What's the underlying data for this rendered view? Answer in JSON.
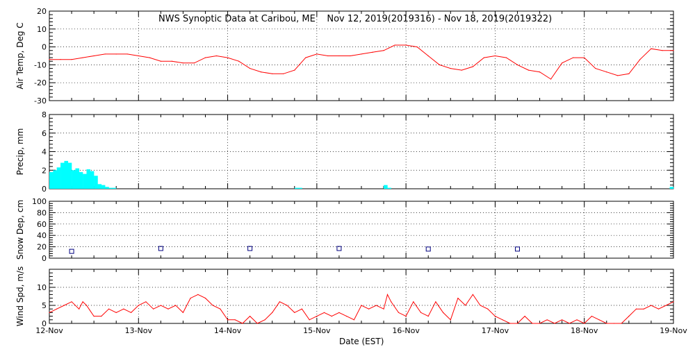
{
  "title": "NWS Synoptic Data at Caribou, ME    Nov 12, 2019(2019316) - Nov 18, 2019(2019322)",
  "xlabel": "Date (EST)",
  "colors": {
    "temp": "#ff0000",
    "precip": "#00ffff",
    "snow": "#000080",
    "wind": "#ff0000",
    "grid": "#000000",
    "axis": "#000000"
  },
  "chart_data": [
    {
      "id": "air-temp",
      "type": "line",
      "title": "",
      "xlabel": "",
      "ylabel": "Air Temp, Deg C",
      "xlim": [
        0,
        7
      ],
      "ylim": [
        -30,
        20
      ],
      "yticks": [
        -30,
        -20,
        -10,
        0,
        10,
        20
      ],
      "grid": true,
      "series": [
        {
          "x": [
            0,
            0.125,
            0.25,
            0.375,
            0.5,
            0.625,
            0.75,
            0.875,
            1.0,
            1.125,
            1.25,
            1.375,
            1.5,
            1.625,
            1.75,
            1.875,
            2.0,
            2.125,
            2.25,
            2.375,
            2.5,
            2.625,
            2.75,
            2.875,
            3.0,
            3.125,
            3.25,
            3.375,
            3.5,
            3.625,
            3.75,
            3.875,
            4.0,
            4.125,
            4.25,
            4.375,
            4.5,
            4.625,
            4.75,
            4.875,
            5.0,
            5.125,
            5.25,
            5.375,
            5.5,
            5.625,
            5.75,
            5.875,
            6.0,
            6.125,
            6.25,
            6.375,
            6.5,
            6.625,
            6.75,
            6.875,
            7.0
          ],
          "values": [
            -7,
            -7,
            -7,
            -6,
            -5,
            -4,
            -4,
            -4,
            -5,
            -6,
            -8,
            -8,
            -9,
            -9,
            -6,
            -5,
            -6,
            -8,
            -12,
            -14,
            -15,
            -15,
            -13,
            -6,
            -4,
            -5,
            -5,
            -5,
            -4,
            -3,
            -2,
            1,
            1,
            0,
            -5,
            -10,
            -12,
            -13,
            -11,
            -6,
            -5,
            -6,
            -10,
            -13,
            -14,
            -18,
            -9,
            -6,
            -6,
            -12,
            -14,
            -16,
            -15,
            -7,
            -1,
            -2,
            -2
          ]
        }
      ]
    },
    {
      "id": "precip",
      "type": "bar",
      "title": "",
      "xlabel": "",
      "ylabel": "Precip, mm",
      "xlim": [
        0,
        7
      ],
      "ylim": [
        0,
        8
      ],
      "yticks": [
        0,
        2,
        4,
        6,
        8
      ],
      "grid": true,
      "x": [
        0.0,
        0.042,
        0.083,
        0.125,
        0.167,
        0.208,
        0.25,
        0.292,
        0.333,
        0.375,
        0.417,
        0.458,
        0.5,
        0.542,
        0.583,
        0.625,
        0.667,
        0.708,
        2.75,
        2.792,
        3.75,
        3.792,
        6.958
      ],
      "values": [
        1.8,
        2.0,
        2.3,
        2.8,
        3.0,
        2.8,
        2.0,
        2.2,
        1.8,
        1.6,
        2.1,
        1.9,
        1.4,
        0.5,
        0.4,
        0.2,
        0.1,
        0.1,
        0.1,
        0.1,
        0.4,
        0.1,
        0.2
      ]
    },
    {
      "id": "snow-depth",
      "type": "scatter",
      "title": "",
      "xlabel": "",
      "ylabel": "Snow Dep, cm",
      "xlim": [
        0,
        7
      ],
      "ylim": [
        0,
        100
      ],
      "yticks": [
        0,
        20,
        40,
        60,
        80,
        100
      ],
      "grid": true,
      "x": [
        0.25,
        1.25,
        2.25,
        3.25,
        4.25,
        5.25
      ],
      "values": [
        12,
        17,
        17,
        17,
        16,
        16
      ]
    },
    {
      "id": "wind-speed",
      "type": "line",
      "title": "",
      "xlabel": "",
      "ylabel": "Wind Spd, m/s",
      "xlim": [
        0,
        7
      ],
      "ylim": [
        0,
        15
      ],
      "yticks": [
        0,
        5,
        10
      ],
      "xticklabels": [
        "12-Nov",
        "13-Nov",
        "14-Nov",
        "15-Nov",
        "16-Nov",
        "17-Nov",
        "18-Nov",
        "19-Nov"
      ],
      "grid": true,
      "series": [
        {
          "x": [
            0,
            0.083,
            0.167,
            0.25,
            0.333,
            0.375,
            0.417,
            0.5,
            0.583,
            0.667,
            0.75,
            0.833,
            0.917,
            1.0,
            1.083,
            1.167,
            1.25,
            1.333,
            1.417,
            1.5,
            1.583,
            1.667,
            1.75,
            1.833,
            1.917,
            2.0,
            2.083,
            2.167,
            2.25,
            2.333,
            2.417,
            2.5,
            2.583,
            2.667,
            2.75,
            2.833,
            2.917,
            3.0,
            3.083,
            3.167,
            3.25,
            3.333,
            3.417,
            3.5,
            3.583,
            3.667,
            3.75,
            3.792,
            3.833,
            3.917,
            4.0,
            4.083,
            4.167,
            4.25,
            4.333,
            4.417,
            4.5,
            4.583,
            4.667,
            4.75,
            4.833,
            4.917,
            5.0,
            5.083,
            5.167,
            5.25,
            5.333,
            5.417,
            5.5,
            5.583,
            5.667,
            5.75,
            5.833,
            5.917,
            6.0,
            6.083,
            6.167,
            6.25,
            6.333,
            6.417,
            6.5,
            6.583,
            6.667,
            6.75,
            6.833,
            6.917,
            7.0
          ],
          "values": [
            3,
            4,
            5,
            6,
            4,
            6,
            5,
            2,
            2,
            4,
            3,
            4,
            3,
            5,
            6,
            4,
            5,
            4,
            5,
            3,
            7,
            8,
            7,
            5,
            4,
            1,
            1,
            0,
            2,
            0,
            1,
            3,
            6,
            5,
            3,
            4,
            1,
            2,
            3,
            2,
            3,
            2,
            1,
            5,
            4,
            5,
            4,
            8,
            6,
            3,
            2,
            6,
            3,
            2,
            6,
            3,
            1,
            7,
            5,
            8,
            5,
            4,
            2,
            1,
            0,
            0,
            2,
            0,
            0,
            1,
            0,
            1,
            0,
            1,
            0,
            2,
            1,
            0,
            0,
            0,
            2,
            4,
            4,
            5,
            4,
            5,
            6
          ]
        }
      ]
    }
  ]
}
